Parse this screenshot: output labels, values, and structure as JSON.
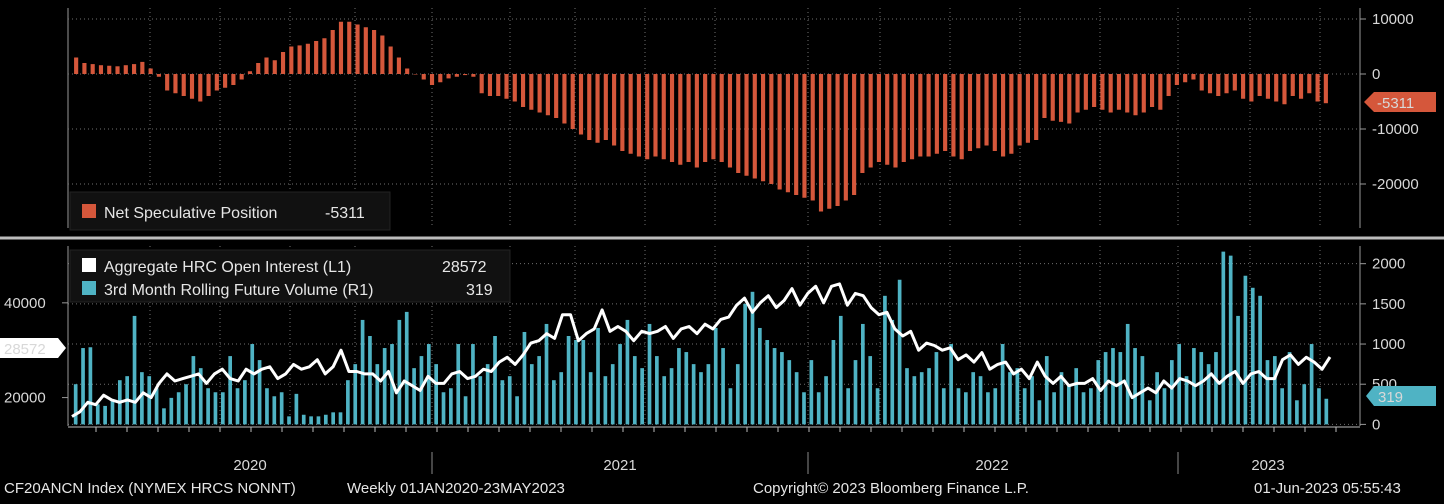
{
  "footer": {
    "ticker": "CF20ANCN Index (NYMEX HRCS NONNT)",
    "range": "Weekly 01JAN2020-23MAY2023",
    "copyright": "Copyright© 2023 Bloomberg Finance L.P.",
    "timestamp": "01-Jun-2023 05:55:43"
  },
  "colors": {
    "net_position": "#d5573b",
    "open_interest": "#ffffff",
    "volume": "#4fb3c4"
  },
  "chart_data": [
    {
      "type": "bar",
      "title": "",
      "legend": [
        {
          "label": "Net Speculative Position",
          "value": "-5311"
        }
      ],
      "last_value_label": "-5311",
      "y_ticks": [
        {
          "value": 10000,
          "label": "10000"
        },
        {
          "value": 0,
          "label": "0"
        },
        {
          "value": -10000,
          "label": "-10000"
        },
        {
          "value": -20000,
          "label": "-20000"
        }
      ],
      "ylim": [
        -28000,
        12000
      ],
      "series": [
        {
          "name": "Net Speculative Position",
          "values": [
            3000,
            2000,
            1800,
            1600,
            1500,
            1400,
            1600,
            1800,
            2200,
            1000,
            -500,
            -3000,
            -3500,
            -4000,
            -4500,
            -5000,
            -4000,
            -3000,
            -2500,
            -2000,
            -1000,
            500,
            2000,
            3000,
            2500,
            4000,
            5000,
            5200,
            5500,
            6000,
            6500,
            8000,
            9500,
            9500,
            9000,
            8500,
            8000,
            7000,
            5000,
            3000,
            1000,
            0,
            -1000,
            -2000,
            -1500,
            -800,
            -500,
            -200,
            -500,
            -3500,
            -4000,
            -4000,
            -4500,
            -5000,
            -6000,
            -6500,
            -7000,
            -7500,
            -8000,
            -9000,
            -10000,
            -11000,
            -12000,
            -12500,
            -12000,
            -13000,
            -14000,
            -14500,
            -15000,
            -15500,
            -15000,
            -15500,
            -16000,
            -16500,
            -16000,
            -17000,
            -16000,
            -15500,
            -16000,
            -17000,
            -18000,
            -18500,
            -19000,
            -19500,
            -20000,
            -21000,
            -21500,
            -22000,
            -22500,
            -23000,
            -25000,
            -24500,
            -24000,
            -23000,
            -22000,
            -18000,
            -17000,
            -16000,
            -16500,
            -17000,
            -16000,
            -15500,
            -15000,
            -15000,
            -14500,
            -14000,
            -15000,
            -15500,
            -14000,
            -13500,
            -13000,
            -14000,
            -15000,
            -14500,
            -13000,
            -12500,
            -12000,
            -8000,
            -8500,
            -8700,
            -9000,
            -7000,
            -6500,
            -6000,
            -6500,
            -7000,
            -6500,
            -7000,
            -7500,
            -7000,
            -6000,
            -6500,
            -4000,
            -2000,
            -1500,
            -1000,
            -3000,
            -3500,
            -4000,
            -3500,
            -3000,
            -4500,
            -5000,
            -4000,
            -4500,
            -5000,
            -5500,
            -4000,
            -4500,
            -3500,
            -5000,
            -5311
          ]
        }
      ]
    },
    {
      "type": "bar+line",
      "legend": [
        {
          "label": "Aggregate HRC Open Interest (L1)",
          "value": "28572"
        },
        {
          "label": "3rd Month Rolling Future Volume (R1)",
          "value": "319"
        }
      ],
      "left_axis": {
        "ticks": [
          {
            "value": 20000,
            "label": "20000"
          },
          {
            "value": 40000,
            "label": "40000"
          }
        ],
        "ylim": [
          14000,
          52000
        ],
        "last_value_label": "28572"
      },
      "right_axis": {
        "ticks": [
          {
            "value": 0,
            "label": "0"
          },
          {
            "value": 500,
            "label": "500"
          },
          {
            "value": 1000,
            "label": "1000"
          },
          {
            "value": 1500,
            "label": "1500"
          },
          {
            "value": 2000,
            "label": "2000"
          }
        ],
        "ylim": [
          -20,
          2220
        ],
        "last_value_label": "319"
      },
      "x_labels": [
        "2020",
        "2021",
        "2022",
        "2023"
      ],
      "series": [
        {
          "name": "Aggregate HRC Open Interest (L1)",
          "axis": "left",
          "values": [
            16000,
            17000,
            19000,
            18500,
            20500,
            19500,
            19000,
            19500,
            19000,
            21000,
            20000,
            23000,
            25000,
            23500,
            24000,
            24500,
            25000,
            23000,
            25000,
            26000,
            24000,
            23500,
            26000,
            25000,
            26000,
            26500,
            24000,
            25000,
            27000,
            26000,
            26500,
            28000,
            25000,
            26500,
            30000,
            25500,
            25500,
            25000,
            25000,
            23500,
            25500,
            21000,
            23500,
            22500,
            21500,
            24500,
            23000,
            23000,
            25000,
            25500,
            24000,
            24500,
            26000,
            25500,
            27500,
            28500,
            27000,
            29000,
            31500,
            32000,
            33500,
            32500,
            37500,
            37500,
            32000,
            33500,
            34500,
            38500,
            34000,
            35000,
            34000,
            32000,
            34000,
            33500,
            34000,
            35000,
            32500,
            34500,
            35000,
            33500,
            35500,
            34500,
            36500,
            37000,
            39500,
            41000,
            38000,
            40000,
            41500,
            39000,
            40500,
            43000,
            39500,
            42000,
            43500,
            40000,
            43500,
            44000,
            39500,
            42000,
            41500,
            39000,
            37500,
            38000,
            34500,
            33000,
            34000,
            30000,
            31500,
            31000,
            30000,
            30500,
            28000,
            29000,
            27500,
            29500,
            26000,
            27000,
            27500,
            25000,
            26000,
            24000,
            27500,
            24500,
            23000,
            24500,
            22500,
            23000,
            23000,
            24000,
            21500,
            23500,
            22500,
            23500,
            20000,
            21000,
            22000,
            21000,
            23500,
            22000,
            24000,
            23500,
            22500,
            23500,
            25000,
            23000,
            24500,
            25500,
            23000,
            25000,
            25500,
            24000,
            24000,
            28000,
            29000,
            27000,
            28500,
            27500,
            26000,
            28572
          ]
        },
        {
          "name": "3rd Month Rolling Future Volume (R1)",
          "axis": "right",
          "values": [
            500,
            950,
            960,
            250,
            230,
            300,
            550,
            600,
            1350,
            650,
            600,
            450,
            200,
            330,
            400,
            500,
            850,
            700,
            450,
            400,
            400,
            850,
            450,
            550,
            1000,
            800,
            450,
            350,
            400,
            100,
            380,
            120,
            100,
            100,
            120,
            150,
            150,
            550,
            750,
            1300,
            1100,
            750,
            950,
            1000,
            1300,
            1400,
            700,
            850,
            1000,
            750,
            400,
            450,
            1000,
            350,
            1000,
            600,
            750,
            1100,
            550,
            600,
            350,
            1150,
            750,
            850,
            1250,
            550,
            650,
            1100,
            1050,
            1050,
            650,
            1200,
            600,
            750,
            1000,
            1300,
            850,
            700,
            1250,
            850,
            600,
            700,
            950,
            900,
            750,
            650,
            750,
            1200,
            950,
            450,
            750,
            1500,
            1650,
            1200,
            1050,
            950,
            900,
            800,
            650,
            400,
            800,
            400,
            600,
            1050,
            1350,
            450,
            800,
            1250,
            850,
            450,
            1600,
            1300,
            1800,
            700,
            600,
            650,
            700,
            900,
            450,
            1000,
            450,
            400,
            650,
            600,
            400,
            450,
            1000,
            650,
            700,
            450,
            600,
            300,
            850,
            400,
            650,
            500,
            700,
            400,
            450,
            800,
            900,
            950,
            900,
            1250,
            950,
            850,
            300,
            650,
            450,
            800,
            1000,
            600,
            950,
            900,
            750,
            900,
            2150,
            2100,
            1350,
            1850,
            1700,
            1600,
            800,
            850,
            450,
            900,
            300,
            500,
            1000,
            450,
            319
          ]
        }
      ]
    }
  ]
}
